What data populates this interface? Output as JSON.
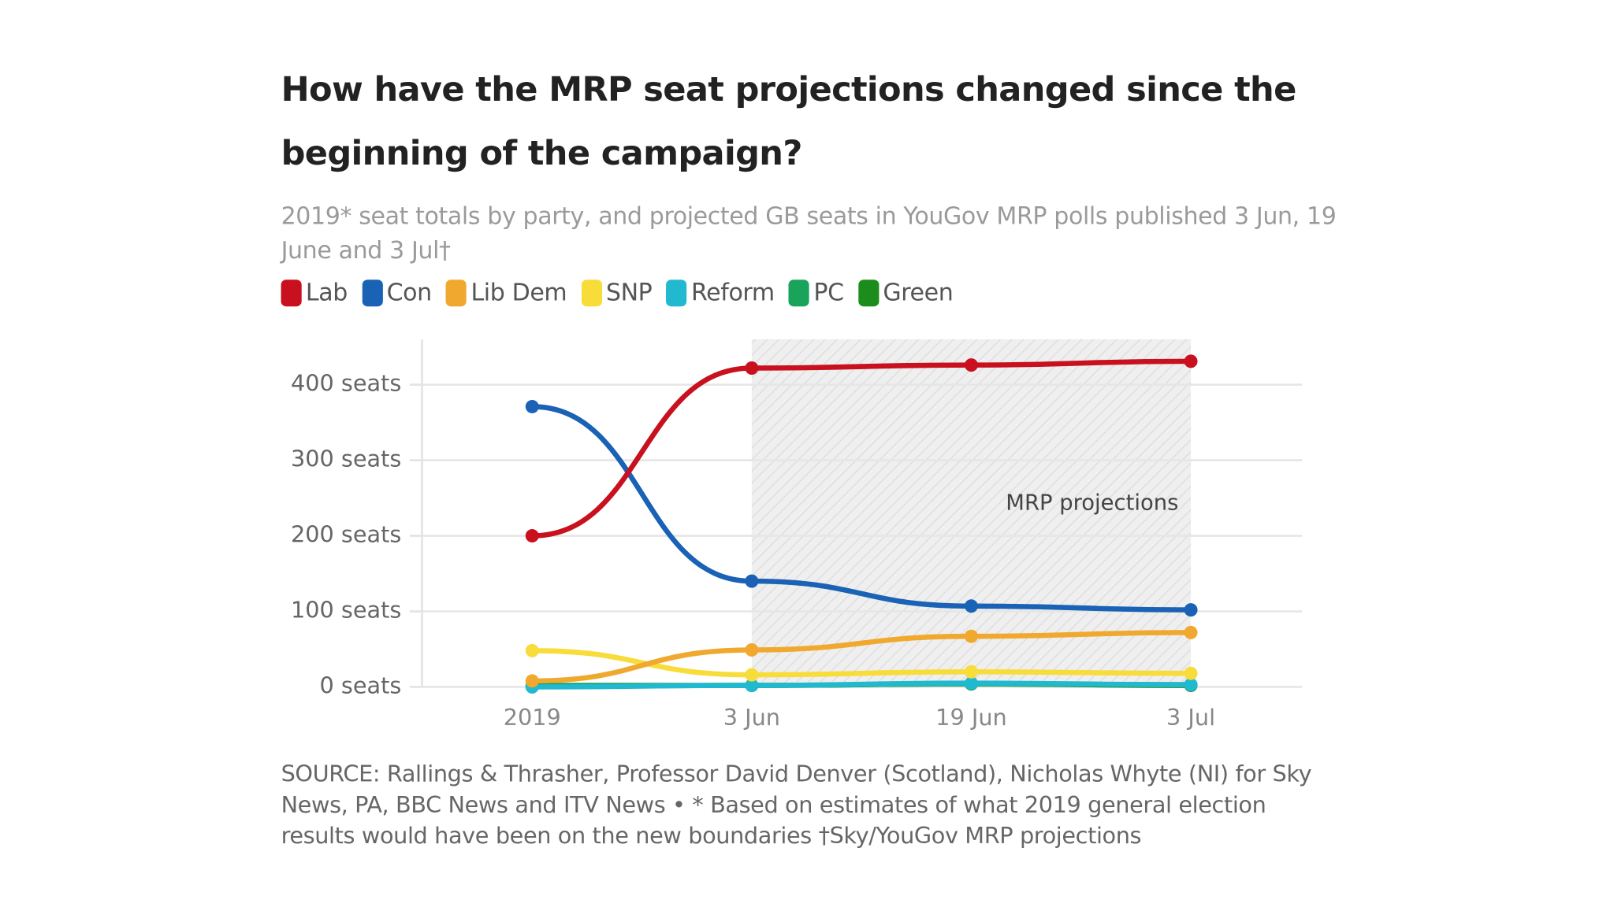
{
  "chart_data": {
    "type": "line",
    "title": "How have the MRP seat projections changed since the beginning of the campaign?",
    "subtitle": "2019* seat totals by party, and projected GB seats in YouGov MRP polls published 3 Jun, 19 June and 3 Jul†",
    "source": "SOURCE: Rallings & Thrasher, Professor David Denver (Scotland), Nicholas Whyte (NI) for Sky News, PA, BBC News and ITV News • * Based on estimates of what 2019 general election results would have been on the new boundaries †Sky/YouGov MRP projections",
    "categories": [
      "2019",
      "3 Jun",
      "19 Jun",
      "3 Jul"
    ],
    "series": [
      {
        "name": "Lab",
        "color": "#c8101e",
        "values": [
          200,
          422,
          426,
          431
        ]
      },
      {
        "name": "Con",
        "color": "#1a62b5",
        "values": [
          371,
          140,
          107,
          102
        ]
      },
      {
        "name": "Lib Dem",
        "color": "#f0a92e",
        "values": [
          8,
          49,
          67,
          72
        ]
      },
      {
        "name": "SNP",
        "color": "#f8dc3a",
        "values": [
          48,
          16,
          20,
          18
        ]
      },
      {
        "name": "Reform",
        "color": "#21b9cf",
        "values": [
          0,
          2,
          5,
          3
        ]
      },
      {
        "name": "PC",
        "color": "#1aa35a",
        "values": [
          2,
          2,
          4,
          3
        ]
      },
      {
        "name": "Green",
        "color": "#1c8c1c",
        "values": [
          1,
          2,
          4,
          2
        ]
      }
    ],
    "ylim": [
      0,
      460
    ],
    "yticks": [
      {
        "value": 0,
        "label": "0 seats"
      },
      {
        "value": 100,
        "label": "100 seats"
      },
      {
        "value": 200,
        "label": "200 seats"
      },
      {
        "value": 300,
        "label": "300 seats"
      },
      {
        "value": 400,
        "label": "400 seats"
      }
    ],
    "grid": true,
    "shade": {
      "label": "MRP projections",
      "from": 1,
      "to": 3
    }
  }
}
